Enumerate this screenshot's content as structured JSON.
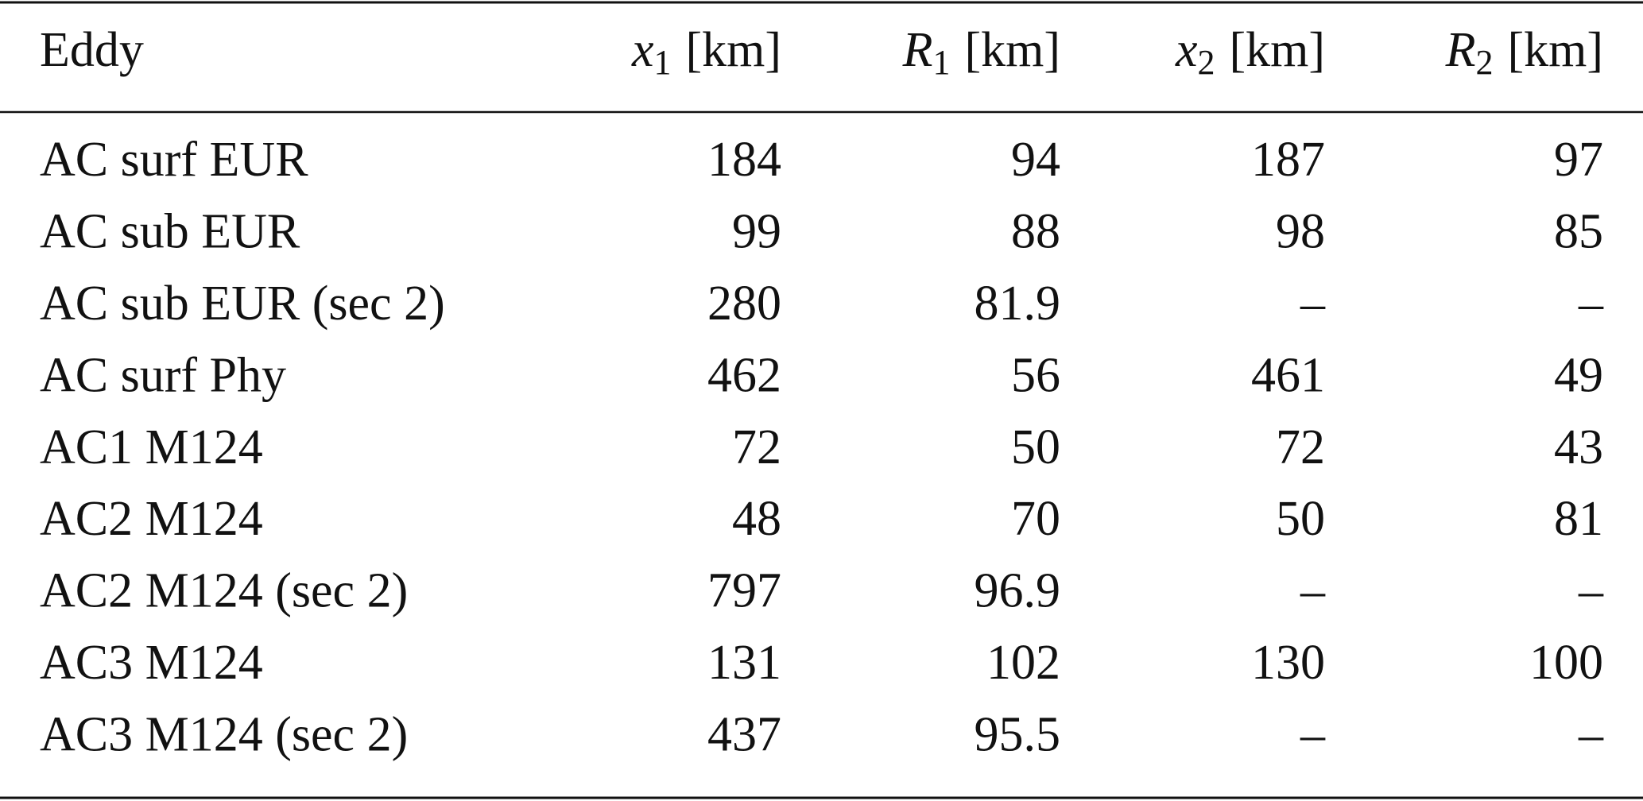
{
  "table": {
    "header": [
      "Eddy",
      {
        "symbol": "x",
        "subscript": "1",
        "unit": "[km]"
      },
      {
        "symbol": "R",
        "subscript": "1",
        "unit": "[km]"
      },
      {
        "symbol": "x",
        "subscript": "2",
        "unit": "[km]"
      },
      {
        "symbol": "R",
        "subscript": "2",
        "unit": "[km]"
      }
    ],
    "rows": [
      [
        "AC surf EUR",
        184,
        94,
        187,
        97
      ],
      [
        "AC sub EUR",
        99,
        88,
        98,
        85
      ],
      [
        "AC sub EUR (sec 2)",
        280,
        81.9,
        "–",
        "–"
      ],
      [
        "AC surf Phy",
        462,
        56,
        461,
        49
      ],
      [
        "AC1 M124",
        72,
        50,
        72,
        43
      ],
      [
        "AC2 M124",
        48,
        70,
        50,
        81
      ],
      [
        "AC2 M124 (sec 2)",
        797,
        96.9,
        "–",
        "–"
      ],
      [
        "AC3 M124",
        131,
        102,
        130,
        100
      ],
      [
        "AC3 M124 (sec 2)",
        437,
        95.5,
        "–",
        "–"
      ]
    ]
  }
}
